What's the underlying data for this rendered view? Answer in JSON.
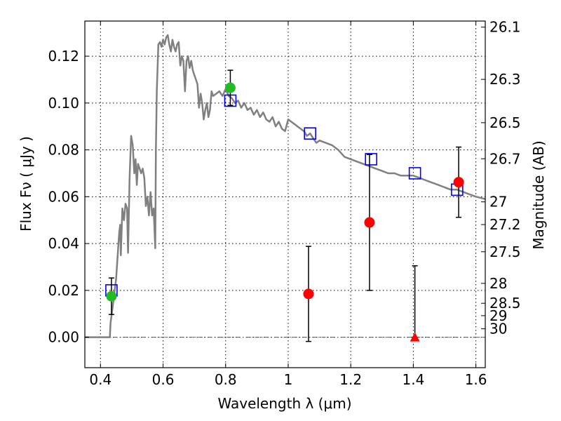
{
  "chart_data": {
    "type": "scatter",
    "xlabel": "Wavelength  λ (μm)",
    "ylabel": "Flux  Fν  ( μJy )",
    "ylabel_right": "Magnitude (AB)",
    "xlim": [
      0.35,
      1.63
    ],
    "ylim": [
      -0.013,
      0.135
    ],
    "grid": true,
    "x_ticks": [
      {
        "value": 0.4,
        "label": "0.4"
      },
      {
        "value": 0.6,
        "label": "0.6"
      },
      {
        "value": 0.8,
        "label": "0.8"
      },
      {
        "value": 1.0,
        "label": "1"
      },
      {
        "value": 1.2,
        "label": "1.2"
      },
      {
        "value": 1.4,
        "label": "1.4"
      },
      {
        "value": 1.6,
        "label": "1.6"
      }
    ],
    "y_ticks": [
      {
        "value": 0.0,
        "label": "0.00"
      },
      {
        "value": 0.02,
        "label": "0.02"
      },
      {
        "value": 0.04,
        "label": "0.04"
      },
      {
        "value": 0.06,
        "label": "0.06"
      },
      {
        "value": 0.08,
        "label": "0.08"
      },
      {
        "value": 0.1,
        "label": "0.10"
      },
      {
        "value": 0.12,
        "label": "0.12"
      }
    ],
    "mag_ticks": [
      {
        "label": "26.1",
        "flux": 0.1324
      },
      {
        "label": "26.3",
        "flux": 0.1101
      },
      {
        "label": "26.5",
        "flux": 0.0916
      },
      {
        "label": "26.7",
        "flux": 0.0762
      },
      {
        "label": "27",
        "flux": 0.0578
      },
      {
        "label": "27.2",
        "flux": 0.0481
      },
      {
        "label": "27.5",
        "flux": 0.0365
      },
      {
        "label": "28",
        "flux": 0.023
      },
      {
        "label": "28.5",
        "flux": 0.0145
      },
      {
        "label": "29",
        "flux": 0.0092
      },
      {
        "label": "30",
        "flux": 0.0036
      }
    ],
    "series": [
      {
        "kind": "sed-model",
        "color": "#808080",
        "points": [
          [
            0.35,
            0.0
          ],
          [
            0.43,
            0.0
          ],
          [
            0.432,
            0.006
          ],
          [
            0.44,
            0.014
          ],
          [
            0.45,
            0.025
          ],
          [
            0.455,
            0.035
          ],
          [
            0.46,
            0.045
          ],
          [
            0.463,
            0.048
          ],
          [
            0.465,
            0.035
          ],
          [
            0.47,
            0.055
          ],
          [
            0.475,
            0.05
          ],
          [
            0.48,
            0.057
          ],
          [
            0.485,
            0.055
          ],
          [
            0.488,
            0.036
          ],
          [
            0.493,
            0.068
          ],
          [
            0.498,
            0.086
          ],
          [
            0.503,
            0.082
          ],
          [
            0.508,
            0.07
          ],
          [
            0.512,
            0.076
          ],
          [
            0.516,
            0.065
          ],
          [
            0.52,
            0.074
          ],
          [
            0.525,
            0.072
          ],
          [
            0.53,
            0.07
          ],
          [
            0.535,
            0.072
          ],
          [
            0.54,
            0.068
          ],
          [
            0.545,
            0.056
          ],
          [
            0.55,
            0.06
          ],
          [
            0.555,
            0.052
          ],
          [
            0.56,
            0.062
          ],
          [
            0.565,
            0.052
          ],
          [
            0.57,
            0.055
          ],
          [
            0.575,
            0.038
          ],
          [
            0.577,
            0.08
          ],
          [
            0.58,
            0.105
          ],
          [
            0.585,
            0.125
          ],
          [
            0.59,
            0.126
          ],
          [
            0.595,
            0.124
          ],
          [
            0.6,
            0.127
          ],
          [
            0.605,
            0.125
          ],
          [
            0.61,
            0.128
          ],
          [
            0.615,
            0.129
          ],
          [
            0.62,
            0.125
          ],
          [
            0.625,
            0.122
          ],
          [
            0.63,
            0.127
          ],
          [
            0.635,
            0.124
          ],
          [
            0.64,
            0.122
          ],
          [
            0.645,
            0.125
          ],
          [
            0.65,
            0.126
          ],
          [
            0.655,
            0.116
          ],
          [
            0.66,
            0.12
          ],
          [
            0.665,
            0.118
          ],
          [
            0.67,
            0.105
          ],
          [
            0.675,
            0.118
          ],
          [
            0.68,
            0.12
          ],
          [
            0.685,
            0.115
          ],
          [
            0.69,
            0.118
          ],
          [
            0.695,
            0.114
          ],
          [
            0.7,
            0.112
          ],
          [
            0.705,
            0.11
          ],
          [
            0.71,
            0.108
          ],
          [
            0.715,
            0.098
          ],
          [
            0.72,
            0.104
          ],
          [
            0.725,
            0.1
          ],
          [
            0.73,
            0.093
          ],
          [
            0.735,
            0.097
          ],
          [
            0.74,
            0.1
          ],
          [
            0.745,
            0.094
          ],
          [
            0.75,
            0.097
          ],
          [
            0.755,
            0.105
          ],
          [
            0.76,
            0.103
          ],
          [
            0.77,
            0.104
          ],
          [
            0.78,
            0.105
          ],
          [
            0.79,
            0.103
          ],
          [
            0.8,
            0.106
          ],
          [
            0.81,
            0.103
          ],
          [
            0.82,
            0.102
          ],
          [
            0.83,
            0.1
          ],
          [
            0.84,
            0.101
          ],
          [
            0.85,
            0.098
          ],
          [
            0.86,
            0.1
          ],
          [
            0.87,
            0.097
          ],
          [
            0.88,
            0.098
          ],
          [
            0.89,
            0.095
          ],
          [
            0.9,
            0.097
          ],
          [
            0.91,
            0.094
          ],
          [
            0.92,
            0.096
          ],
          [
            0.93,
            0.093
          ],
          [
            0.94,
            0.092
          ],
          [
            0.95,
            0.094
          ],
          [
            0.96,
            0.09
          ],
          [
            0.97,
            0.092
          ],
          [
            0.98,
            0.089
          ],
          [
            0.99,
            0.088
          ],
          [
            1.0,
            0.093
          ],
          [
            1.01,
            0.092
          ],
          [
            1.02,
            0.091
          ],
          [
            1.03,
            0.09
          ],
          [
            1.04,
            0.089
          ],
          [
            1.05,
            0.088
          ],
          [
            1.06,
            0.086
          ],
          [
            1.07,
            0.087
          ],
          [
            1.08,
            0.085
          ],
          [
            1.09,
            0.083
          ],
          [
            1.1,
            0.084
          ],
          [
            1.12,
            0.083
          ],
          [
            1.14,
            0.082
          ],
          [
            1.16,
            0.08
          ],
          [
            1.18,
            0.077
          ],
          [
            1.2,
            0.076
          ],
          [
            1.22,
            0.075
          ],
          [
            1.24,
            0.074
          ],
          [
            1.26,
            0.073
          ],
          [
            1.28,
            0.072
          ],
          [
            1.3,
            0.071
          ],
          [
            1.32,
            0.07
          ],
          [
            1.34,
            0.07
          ],
          [
            1.36,
            0.069
          ],
          [
            1.38,
            0.069
          ],
          [
            1.4,
            0.069
          ],
          [
            1.42,
            0.068
          ],
          [
            1.44,
            0.067
          ],
          [
            1.46,
            0.066
          ],
          [
            1.48,
            0.065
          ],
          [
            1.5,
            0.064
          ],
          [
            1.52,
            0.063
          ],
          [
            1.54,
            0.063
          ],
          [
            1.56,
            0.062
          ],
          [
            1.58,
            0.061
          ],
          [
            1.6,
            0.06
          ],
          [
            1.63,
            0.059
          ]
        ]
      },
      {
        "kind": "model-photometry",
        "color": "#0000ff",
        "marker": "square",
        "points": [
          {
            "x": 0.435,
            "y": 0.02
          },
          {
            "x": 0.815,
            "y": 0.101
          },
          {
            "x": 1.07,
            "y": 0.087
          },
          {
            "x": 1.265,
            "y": 0.076
          },
          {
            "x": 1.405,
            "y": 0.07
          },
          {
            "x": 1.54,
            "y": 0.063
          }
        ]
      },
      {
        "kind": "measured-detections",
        "color": "#22bb22",
        "marker": "circle",
        "points": [
          {
            "x": 0.435,
            "y": 0.0175,
            "err": 0.0078
          },
          {
            "x": 0.815,
            "y": 0.1065,
            "err": 0.0075
          }
        ]
      },
      {
        "kind": "measured-faint",
        "color": "#ff0000",
        "marker": "circle",
        "points": [
          {
            "x": 1.065,
            "y": 0.0185,
            "err": 0.0203
          },
          {
            "x": 1.26,
            "y": 0.049,
            "err": 0.029
          },
          {
            "x": 1.545,
            "y": 0.0662,
            "err": 0.015
          }
        ]
      },
      {
        "kind": "upper-limit",
        "color": "#ff0000",
        "marker": "triangle",
        "points": [
          {
            "x": 1.405,
            "y": 0.0,
            "err_up": 0.0305
          }
        ]
      }
    ],
    "reference_line": {
      "y": 0.0,
      "style": "dash-dot",
      "color": "#555555"
    }
  }
}
